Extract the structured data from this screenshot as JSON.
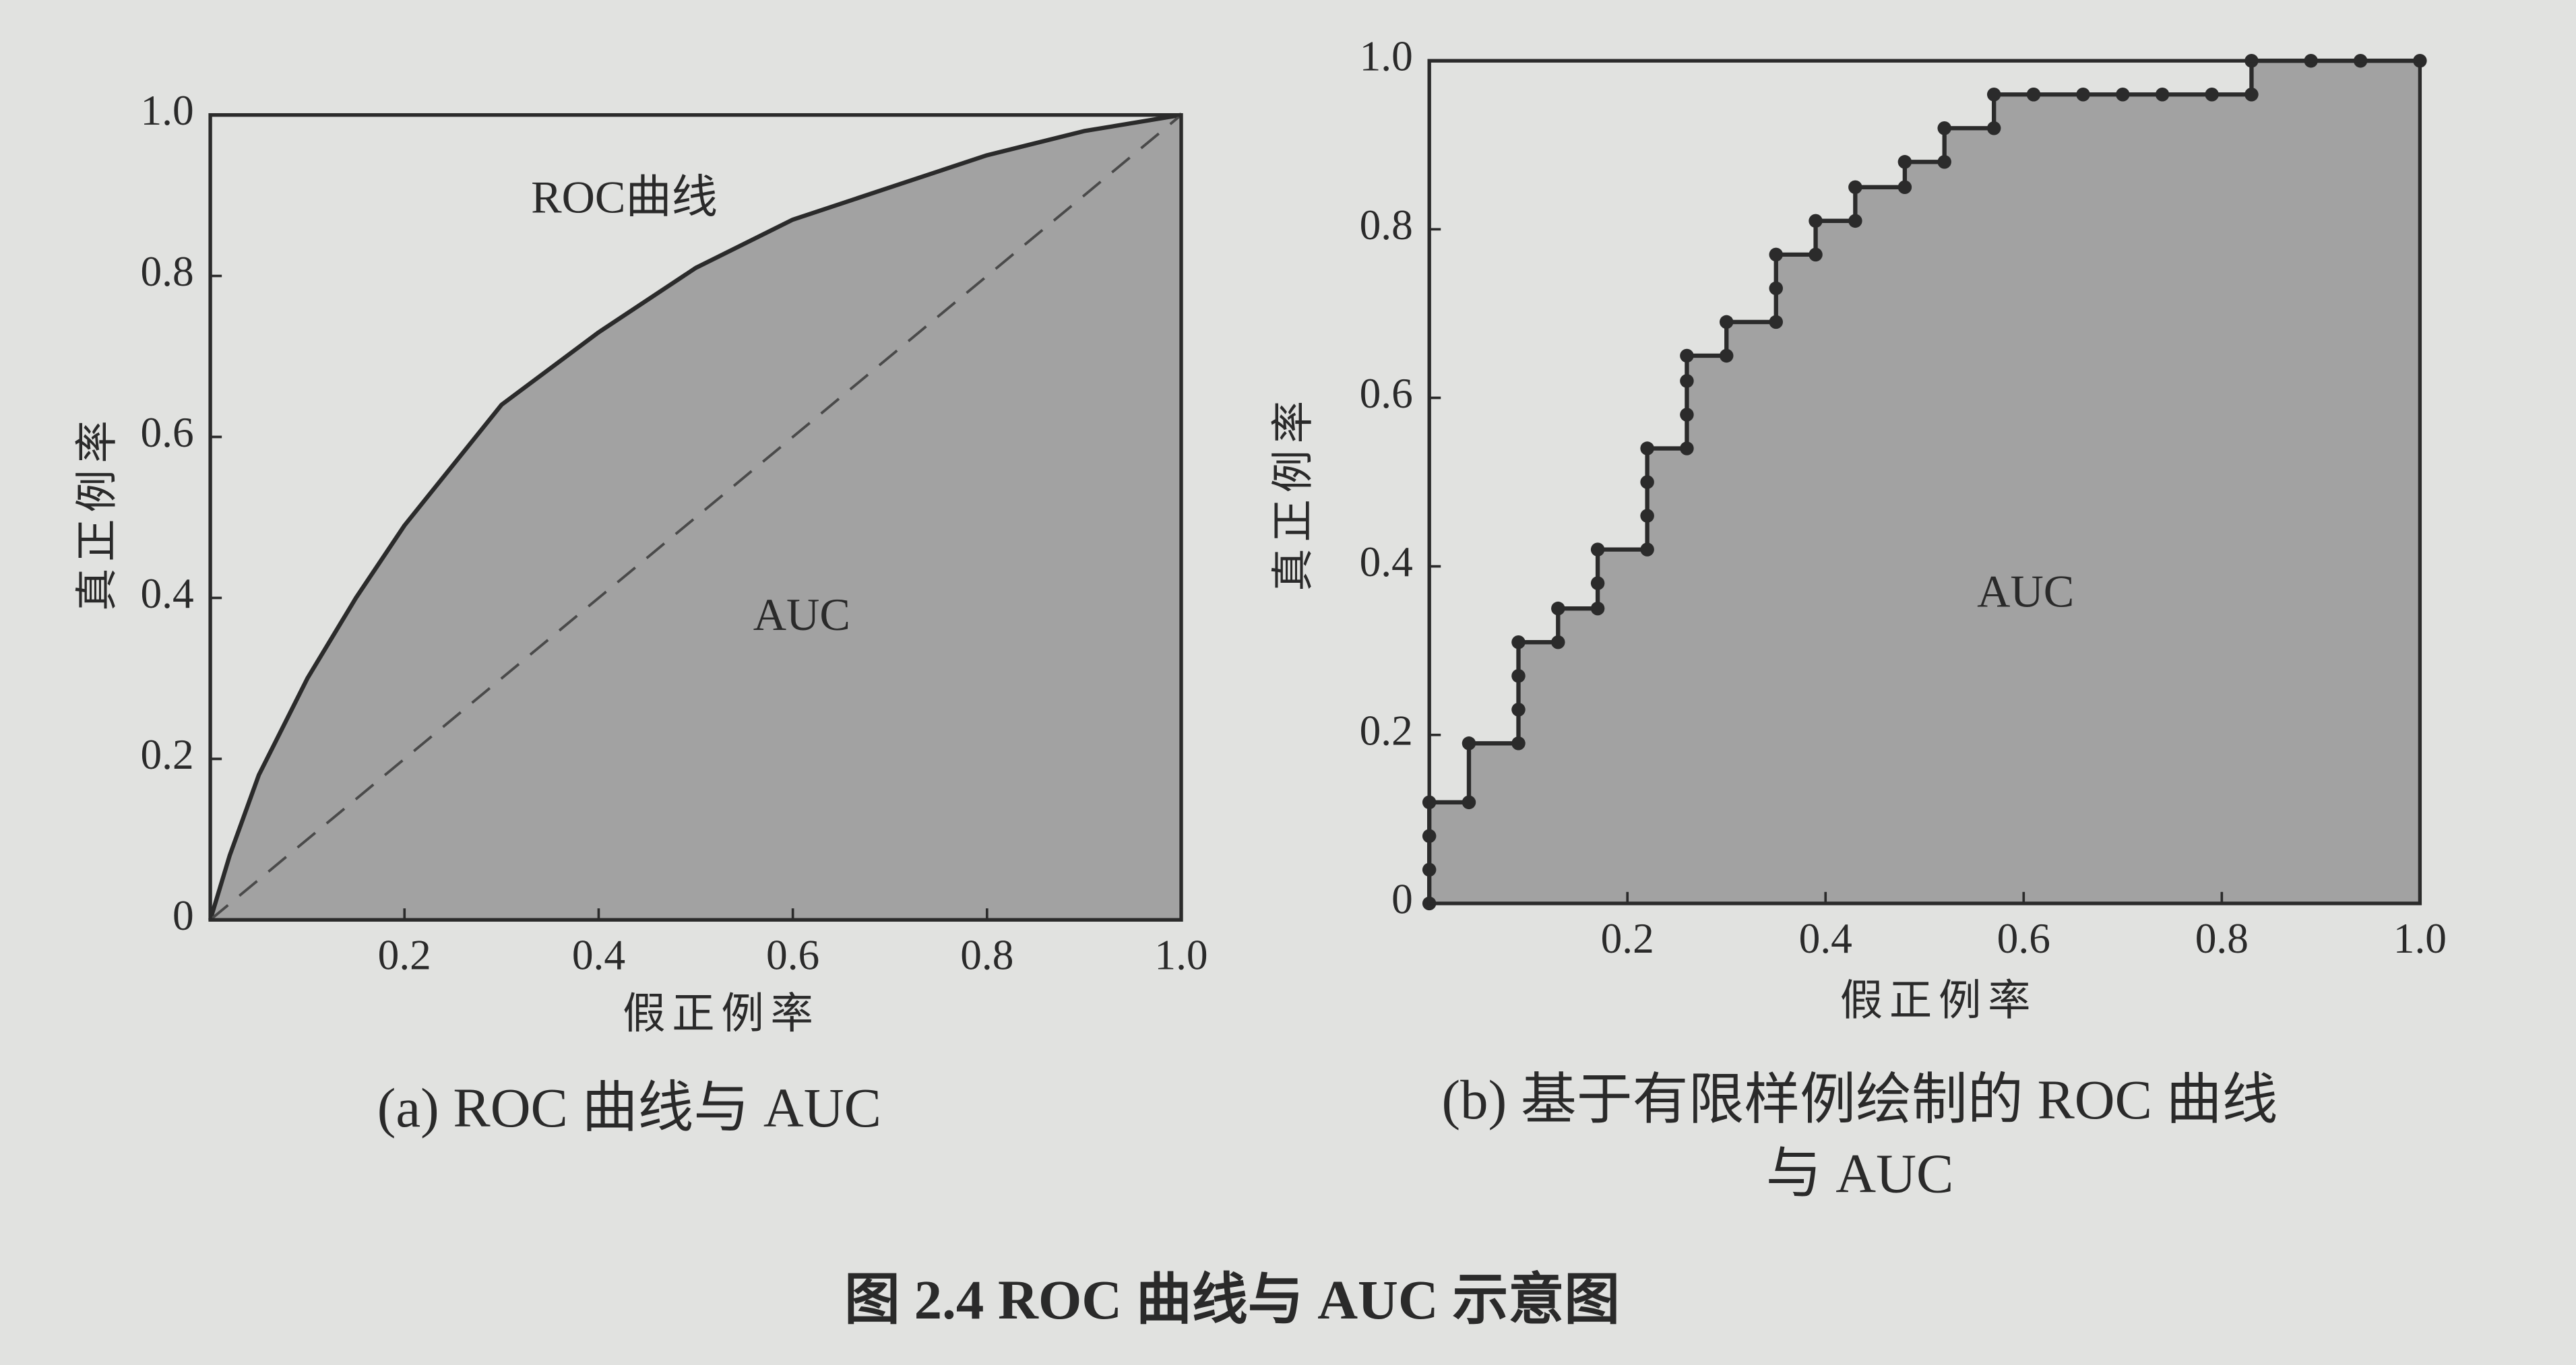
{
  "chart_data": [
    {
      "type": "line",
      "subtitle": "(a) ROC 曲线与 AUC",
      "x_label": "假正例率",
      "y_label": "真正例率",
      "annotations": [
        "ROC曲线",
        "AUC"
      ],
      "x": [
        0,
        0.02,
        0.05,
        0.1,
        0.15,
        0.2,
        0.3,
        0.4,
        0.5,
        0.6,
        0.7,
        0.8,
        0.9,
        1
      ],
      "series": [
        {
          "color": "#2b2b2b",
          "fill": true,
          "area_color": "#a2a2a2",
          "values": [
            0,
            0.08,
            0.18,
            0.3,
            0.4,
            0.49,
            0.64,
            0.73,
            0.81,
            0.87,
            0.91,
            0.95,
            0.98,
            1
          ]
        },
        {
          "color": "#4a4a4a",
          "dash": true,
          "x": [
            0,
            1
          ],
          "values": [
            0,
            1
          ]
        }
      ],
      "xlim": [
        0,
        1
      ],
      "ylim": [
        0,
        1
      ],
      "xticks": [
        0.2,
        0.4,
        0.6,
        0.8,
        {
          "value": 1,
          "label": "1.0"
        }
      ],
      "yticks": [
        0,
        0.2,
        0.4,
        0.6,
        0.8,
        {
          "value": 1,
          "label": "1.0"
        }
      ]
    },
    {
      "type": "line",
      "subtitle": [
        "(b) 基于有限样例绘制的 ROC 曲线",
        "与 AUC"
      ],
      "x_label": "假正例率",
      "y_label": "真正例率",
      "annotations": [
        "AUC"
      ],
      "x": [
        0,
        0,
        0,
        0,
        0.04,
        0.04,
        0.09,
        0.09,
        0.09,
        0.09,
        0.13,
        0.13,
        0.17,
        0.17,
        0.17,
        0.22,
        0.22,
        0.22,
        0.22,
        0.26,
        0.26,
        0.26,
        0.26,
        0.3,
        0.3,
        0.35,
        0.35,
        0.35,
        0.39,
        0.39,
        0.43,
        0.43,
        0.48,
        0.48,
        0.52,
        0.52,
        0.57,
        0.57,
        0.61,
        0.61,
        0.66,
        0.7,
        0.74,
        0.79,
        0.83,
        0.83,
        0.89,
        0.94,
        1
      ],
      "series": [
        {
          "color": "#2b2b2b",
          "fill": true,
          "markers": true,
          "area_color": "#a2a2a2",
          "values": [
            0,
            0.04,
            0.08,
            0.12,
            0.12,
            0.19,
            0.19,
            0.23,
            0.27,
            0.31,
            0.31,
            0.35,
            0.35,
            0.38,
            0.42,
            0.42,
            0.46,
            0.5,
            0.54,
            0.54,
            0.58,
            0.62,
            0.65,
            0.65,
            0.69,
            0.69,
            0.73,
            0.77,
            0.77,
            0.81,
            0.81,
            0.85,
            0.85,
            0.88,
            0.88,
            0.92,
            0.92,
            0.96,
            0.96,
            0.96,
            0.96,
            0.96,
            0.96,
            0.96,
            0.96,
            1,
            1,
            1,
            1
          ]
        }
      ],
      "xlim": [
        0,
        1
      ],
      "ylim": [
        0,
        1
      ],
      "xticks": [
        0.2,
        0.4,
        0.6,
        0.8,
        {
          "value": 1,
          "label": "1.0"
        }
      ],
      "yticks": [
        0,
        0.2,
        0.4,
        0.6,
        0.8,
        {
          "value": 1,
          "label": "1.0"
        }
      ]
    }
  ],
  "caption": "图 2.4  ROC 曲线与 AUC 示意图"
}
